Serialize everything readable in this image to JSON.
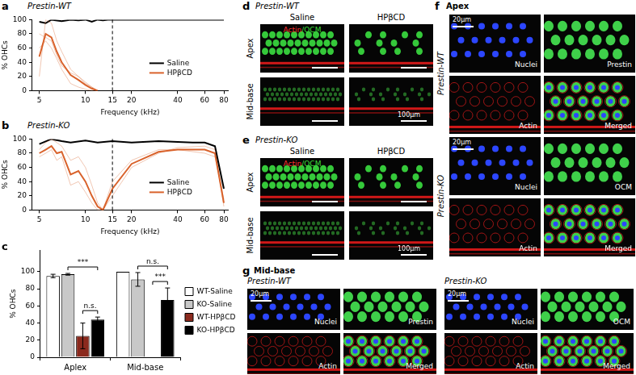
{
  "chart_data": [
    {
      "panel_label": "a",
      "type": "line",
      "title": "Prestin-WT",
      "x_label": "Frequency (kHz)",
      "y_label": "% OHCs",
      "log": "x",
      "xlim": [
        4.5,
        85
      ],
      "xticks": [
        5,
        10,
        15,
        20,
        40,
        60,
        80
      ],
      "ylim": [
        0,
        100
      ],
      "yticks": [
        0,
        20,
        40,
        60,
        80,
        100
      ],
      "grid": false,
      "legend": "lower right",
      "reference_x": 15,
      "series": [
        {
          "name": "Saline",
          "color": "#000000",
          "x": [
            5,
            5.5,
            6,
            7,
            8,
            9,
            10,
            11,
            12,
            13,
            14,
            15,
            20,
            30,
            40,
            60,
            80
          ],
          "values": [
            97,
            95,
            100,
            98,
            100,
            99,
            100,
            97,
            100,
            99,
            100,
            100,
            100,
            100,
            100,
            100,
            100
          ]
        },
        {
          "name": "HPβCD",
          "color": "#d9622b",
          "x": [
            5,
            5.5,
            6,
            6.5,
            7,
            8,
            9,
            10,
            11,
            12
          ],
          "values": [
            48,
            80,
            75,
            55,
            40,
            22,
            15,
            8,
            3,
            0
          ],
          "individual_values": [
            [
              20,
              100,
              95,
              70,
              55,
              30,
              20,
              10,
              5,
              0
            ],
            [
              60,
              70,
              60,
              45,
              30,
              10,
              5,
              2,
              0,
              0
            ],
            [
              80,
              75,
              70,
              50,
              35,
              25,
              20,
              12,
              5,
              0
            ]
          ]
        }
      ]
    },
    {
      "panel_label": "b",
      "type": "line",
      "title": "Prestin-KO",
      "x_label": "Frequency (kHz)",
      "y_label": "% OHCs",
      "log": "x",
      "xlim": [
        4.5,
        85
      ],
      "xticks": [
        5,
        10,
        15,
        20,
        40,
        60,
        80
      ],
      "ylim": [
        0,
        100
      ],
      "yticks": [
        0,
        20,
        40,
        60,
        80,
        100
      ],
      "grid": false,
      "legend": "lower right",
      "reference_x": 15,
      "series": [
        {
          "name": "Saline",
          "color": "#000000",
          "x": [
            5,
            6,
            7,
            8,
            10,
            12,
            15,
            20,
            30,
            40,
            50,
            60,
            70,
            80
          ],
          "values": [
            93,
            100,
            97,
            95,
            98,
            95,
            97,
            95,
            97,
            96,
            95,
            95,
            90,
            30
          ]
        },
        {
          "name": "HPβCD",
          "color": "#d9622b",
          "x": [
            5,
            5.5,
            6,
            6.5,
            7,
            8,
            9,
            10,
            11,
            12,
            13,
            15,
            20,
            30,
            40,
            60,
            70,
            80
          ],
          "values": [
            80,
            85,
            90,
            80,
            82,
            50,
            55,
            40,
            20,
            5,
            0,
            30,
            65,
            82,
            85,
            85,
            80,
            10
          ],
          "individual_values": [
            [
              85,
              95,
              100,
              95,
              90,
              70,
              75,
              60,
              35,
              10,
              0,
              20,
              60,
              80,
              88,
              90,
              85,
              5
            ],
            [
              75,
              80,
              85,
              70,
              75,
              35,
              40,
              25,
              10,
              0,
              0,
              40,
              70,
              85,
              85,
              80,
              75,
              15
            ]
          ]
        }
      ]
    },
    {
      "panel_label": "c",
      "type": "bar",
      "y_label": "% OHCs",
      "categories": [
        "Aplex",
        "Mid-base"
      ],
      "ylim": [
        0,
        125
      ],
      "yticks": [
        0,
        20,
        40,
        60,
        80,
        100
      ],
      "grid": false,
      "legend": "right",
      "series": [
        {
          "name": "WT-Saline",
          "color": "#ffffff",
          "values": [
            95,
            100
          ],
          "errors": [
            2,
            0
          ]
        },
        {
          "name": "KO-Saline",
          "color": "#c8c8c8",
          "values": [
            97,
            91
          ],
          "errors": [
            1,
            8
          ]
        },
        {
          "name": "WT-HPβCD",
          "color": "#8b2a1e",
          "values": [
            25,
            0
          ],
          "errors": [
            15,
            0
          ]
        },
        {
          "name": "KO-HPβCD",
          "color": "#000000",
          "values": [
            44,
            67
          ],
          "errors": [
            3,
            14
          ]
        }
      ],
      "comparisons": [
        {
          "category": 0,
          "from": 2,
          "to": 3,
          "label": "n.s."
        },
        {
          "category": 0,
          "from": 1,
          "to": 3,
          "label": "***"
        },
        {
          "category": 1,
          "from": 2,
          "to": 3,
          "label": "***"
        },
        {
          "category": 1,
          "from": 1,
          "to": 3,
          "label": "n.s."
        }
      ]
    }
  ],
  "grid_panels": [
    {
      "letter": "d",
      "title": "Prestin-WT",
      "columns": [
        "Saline",
        "HPβCD"
      ],
      "rows": [
        "Apex",
        "Mid-base"
      ],
      "stains": [
        {
          "text": "Actin",
          "color": "#ff3030"
        },
        {
          "text": "/OCM",
          "color": "#3adf3a"
        }
      ],
      "scale_bar": "100µm"
    },
    {
      "letter": "e",
      "title": "Prestin-KO",
      "columns": [
        "Saline",
        "HPβCD"
      ],
      "rows": [
        "Apex",
        "Mid-base"
      ],
      "stains": [
        {
          "text": "Actin",
          "color": "#ff3030"
        },
        {
          "text": "/OCM",
          "color": "#3adf3a"
        }
      ],
      "scale_bar": "100µm"
    }
  ],
  "channel_panels": [
    {
      "letter": "f",
      "title": "Apex",
      "groups": [
        {
          "label": "Prestin-WT",
          "tiles": [
            "Nuclei",
            "Prestin",
            "Actin",
            "Merged"
          ],
          "scale_bar": "20µm"
        },
        {
          "label": "Prestin-KO",
          "tiles": [
            "Nuclei",
            "OCM",
            "Actin",
            "Merged"
          ],
          "scale_bar": "20µm"
        }
      ]
    },
    {
      "letter": "g",
      "title": "Mid-base",
      "groups": [
        {
          "label": "Prestin-WT",
          "tiles": [
            "Nuclei",
            "Prestin",
            "Actin",
            "Merged"
          ],
          "scale_bar": "20µm"
        },
        {
          "label": "Prestin-KO",
          "tiles": [
            "Nuclei",
            "OCM",
            "Actin",
            "Merged"
          ],
          "scale_bar": "20µm"
        }
      ]
    }
  ]
}
